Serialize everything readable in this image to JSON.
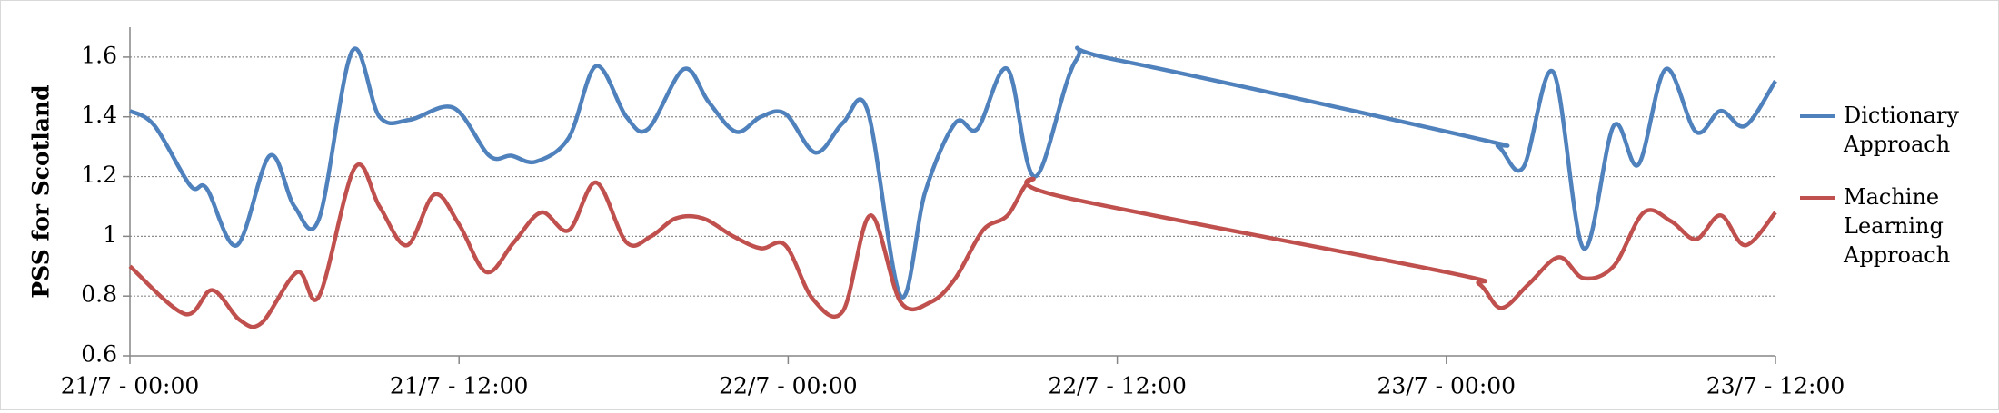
{
  "chart_data": {
    "type": "line",
    "y_label": "PSS for Scotland",
    "xlim": [
      0,
      60
    ],
    "xticks": [
      {
        "value": 0,
        "label": "21/7 - 00:00"
      },
      {
        "value": 12,
        "label": "21/7 - 12:00"
      },
      {
        "value": 24,
        "label": "22/7 - 00:00"
      },
      {
        "value": 36,
        "label": "22/7 - 12:00"
      },
      {
        "value": 48,
        "label": "23/7 - 00:00"
      },
      {
        "value": 60,
        "label": "23/7 - 12:00"
      }
    ],
    "ylim": [
      0.6,
      1.7
    ],
    "yticks": [
      0.6,
      0.8,
      1,
      1.2,
      1.4,
      1.6
    ],
    "grid": true,
    "smooth": true,
    "legend": "right",
    "series": [
      {
        "name": "Dictionary Approach",
        "color": "#4f81bd",
        "x": [
          0,
          0.9,
          2.2,
          2.8,
          3.9,
          5.1,
          6.0,
          6.9,
          8.1,
          9.1,
          10.2,
          11.8,
          13.1,
          13.9,
          14.8,
          16.0,
          17.0,
          18.1,
          18.9,
          20.2,
          21.1,
          22.1,
          23.0,
          23.9,
          25.0,
          26.0,
          26.9,
          28.1,
          29.0,
          30.1,
          30.9,
          32.0,
          33.0,
          34.5,
          36.0,
          49.0,
          49.9,
          50.8,
          51.9,
          53.0,
          54.1,
          55.0,
          56.0,
          57.1,
          58.0,
          58.9,
          60
        ],
        "values": [
          1.42,
          1.37,
          1.17,
          1.16,
          0.97,
          1.27,
          1.1,
          1.06,
          1.62,
          1.4,
          1.39,
          1.43,
          1.27,
          1.27,
          1.25,
          1.33,
          1.57,
          1.4,
          1.36,
          1.56,
          1.45,
          1.35,
          1.4,
          1.41,
          1.28,
          1.38,
          1.42,
          0.8,
          1.15,
          1.38,
          1.36,
          1.56,
          1.2,
          1.59,
          1.59,
          1.33,
          1.3,
          1.23,
          1.55,
          0.96,
          1.37,
          1.24,
          1.56,
          1.35,
          1.42,
          1.37,
          1.52
        ]
      },
      {
        "name": "Machine Learning Approach",
        "color": "#c0504d",
        "x": [
          0,
          2.0,
          3.0,
          4.0,
          4.8,
          6.1,
          6.9,
          8.2,
          9.1,
          10.1,
          11.1,
          12.0,
          13.0,
          14.0,
          15.0,
          16.0,
          17.0,
          18.1,
          19.0,
          19.9,
          20.9,
          22.0,
          23.0,
          23.9,
          24.9,
          26.0,
          27.0,
          28.1,
          29.2,
          30.1,
          31.1,
          32.0,
          32.9,
          34.1,
          48.0,
          49.2,
          50.0,
          51.0,
          52.1,
          53.0,
          54.1,
          55.2,
          56.2,
          57.1,
          58.0,
          58.9,
          60
        ],
        "values": [
          0.9,
          0.74,
          0.82,
          0.72,
          0.71,
          0.88,
          0.8,
          1.23,
          1.1,
          0.97,
          1.14,
          1.04,
          0.88,
          0.98,
          1.08,
          1.02,
          1.18,
          0.98,
          1.0,
          1.06,
          1.06,
          1.0,
          0.96,
          0.97,
          0.79,
          0.75,
          1.07,
          0.78,
          0.78,
          0.86,
          1.02,
          1.07,
          1.19,
          1.13,
          0.88,
          0.84,
          0.76,
          0.84,
          0.93,
          0.86,
          0.9,
          1.08,
          1.05,
          0.99,
          1.07,
          0.97,
          1.08
        ]
      }
    ]
  }
}
